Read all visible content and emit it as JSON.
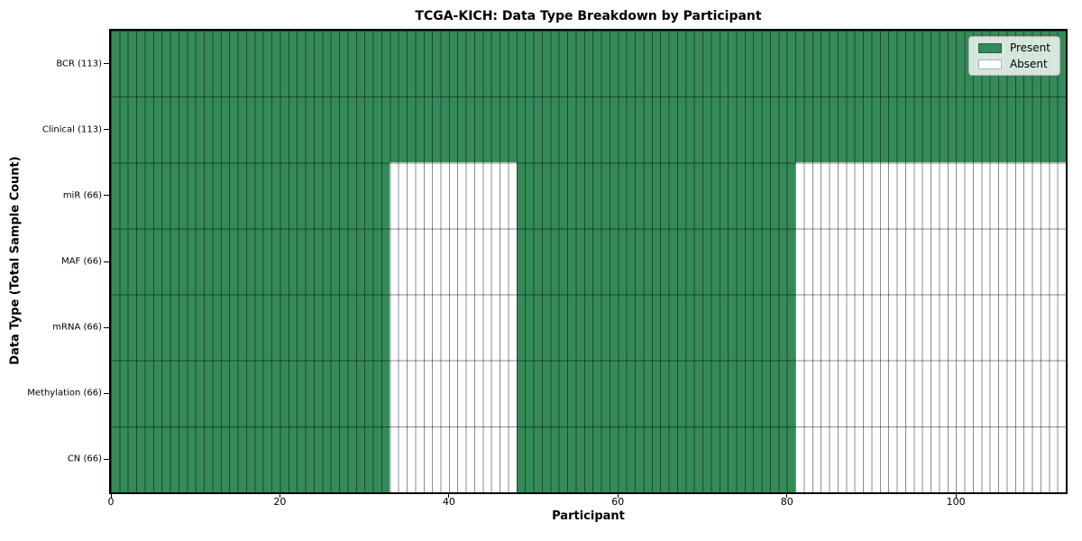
{
  "figure": {
    "background": "#ffffff"
  },
  "chart_data": {
    "type": "heatmap",
    "title": "TCGA-KICH: Data Type Breakdown by Participant",
    "xlabel": "Participant",
    "ylabel": "Data Type (Total Sample Count)",
    "xlim": [
      0,
      113
    ],
    "n_participants": 113,
    "x_ticks": [
      0,
      20,
      40,
      60,
      80,
      100
    ],
    "grid": "bar-cell-edges",
    "colors": {
      "present": "#348a59",
      "absent": "#ffffff",
      "cell_edge": "#00000073",
      "spine": "#000000"
    },
    "legend": {
      "position": "upper right",
      "items": [
        {
          "label": "Present",
          "key": "present"
        },
        {
          "label": "Absent",
          "key": "absent"
        }
      ]
    },
    "rows": [
      {
        "label": "BCR (113)",
        "data_type": "BCR",
        "total_samples": 113,
        "present_runs": [
          [
            0,
            113
          ]
        ]
      },
      {
        "label": "Clinical (113)",
        "data_type": "Clinical",
        "total_samples": 113,
        "present_runs": [
          [
            0,
            113
          ]
        ]
      },
      {
        "label": "miR (66)",
        "data_type": "miR",
        "total_samples": 66,
        "present_runs": [
          [
            0,
            33
          ],
          [
            48,
            81
          ]
        ]
      },
      {
        "label": "MAF (66)",
        "data_type": "MAF",
        "total_samples": 66,
        "present_runs": [
          [
            0,
            33
          ],
          [
            48,
            81
          ]
        ]
      },
      {
        "label": "mRNA (66)",
        "data_type": "mRNA",
        "total_samples": 66,
        "present_runs": [
          [
            0,
            33
          ],
          [
            48,
            81
          ]
        ]
      },
      {
        "label": "Methylation (66)",
        "data_type": "Methylation",
        "total_samples": 66,
        "present_runs": [
          [
            0,
            33
          ],
          [
            48,
            81
          ]
        ]
      },
      {
        "label": "CN (66)",
        "data_type": "CN",
        "total_samples": 66,
        "present_runs": [
          [
            0,
            33
          ],
          [
            48,
            81
          ]
        ]
      }
    ]
  }
}
